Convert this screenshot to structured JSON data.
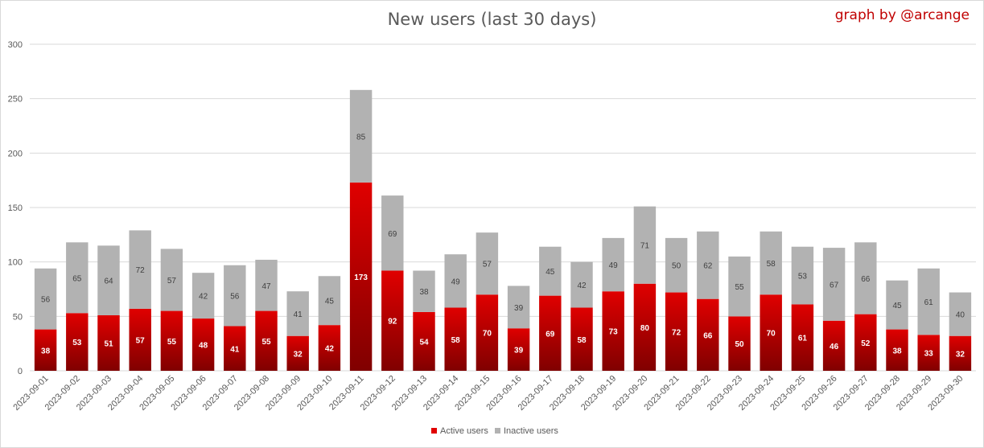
{
  "title": "New users (last 30 days)",
  "credit": "graph by @arcange",
  "colors": {
    "active_top": "#e00000",
    "active_bottom": "#800000",
    "inactive": "#b2b2b2",
    "grid": "#d9d9d9",
    "axis_text": "#595959"
  },
  "chart_data": {
    "type": "bar",
    "stacked": true,
    "categories": [
      "2023-09-01",
      "2023-09-02",
      "2023-09-03",
      "2023-09-04",
      "2023-09-05",
      "2023-09-06",
      "2023-09-07",
      "2023-09-08",
      "2023-09-09",
      "2023-09-10",
      "2023-09-11",
      "2023-09-12",
      "2023-09-13",
      "2023-09-14",
      "2023-09-15",
      "2023-09-16",
      "2023-09-17",
      "2023-09-18",
      "2023-09-19",
      "2023-09-20",
      "2023-09-21",
      "2023-09-22",
      "2023-09-23",
      "2023-09-24",
      "2023-09-25",
      "2023-09-26",
      "2023-09-27",
      "2023-09-28",
      "2023-09-29",
      "2023-09-30"
    ],
    "series": [
      {
        "name": "Active users",
        "values": [
          38,
          53,
          51,
          57,
          55,
          48,
          41,
          55,
          32,
          42,
          173,
          92,
          54,
          58,
          70,
          39,
          69,
          58,
          73,
          80,
          72,
          66,
          50,
          70,
          61,
          46,
          52,
          38,
          33,
          32
        ]
      },
      {
        "name": "Inactive users",
        "values": [
          56,
          65,
          64,
          72,
          57,
          42,
          56,
          47,
          41,
          45,
          85,
          69,
          38,
          49,
          57,
          39,
          45,
          42,
          49,
          71,
          50,
          62,
          55,
          58,
          53,
          67,
          66,
          45,
          61,
          40
        ]
      }
    ],
    "ylim": [
      0,
      300
    ],
    "yticks": [
      0,
      50,
      100,
      150,
      200,
      250,
      300
    ],
    "grid": true,
    "legend_position": "bottom-center"
  }
}
